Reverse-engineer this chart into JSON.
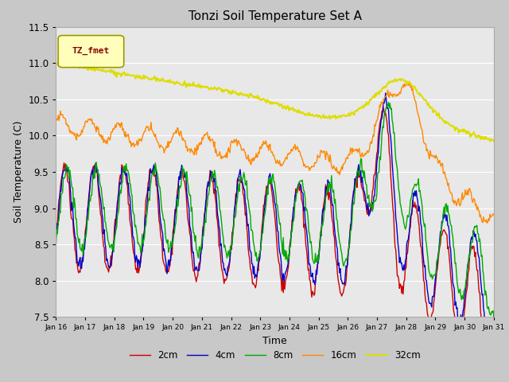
{
  "title": "Tonzi Soil Temperature Set A",
  "xlabel": "Time",
  "ylabel": "Soil Temperature (C)",
  "ylim": [
    7.5,
    11.5
  ],
  "fig_facecolor": "#c8c8c8",
  "plot_bg_color": "#e8e8e8",
  "legend_label": "TZ_fmet",
  "legend_box_facecolor": "#ffffbb",
  "legend_box_edgecolor": "#999900",
  "legend_text_color": "#880000",
  "x_tick_labels": [
    "Jan 16",
    "Jan 17",
    "Jan 18",
    "Jan 19",
    "Jan 20",
    "Jan 21",
    "Jan 22",
    "Jan 23",
    "Jan 24",
    "Jan 25",
    "Jan 26",
    "Jan 27",
    "Jan 28",
    "Jan 29",
    "Jan 30",
    "Jan 31"
  ],
  "series_labels": [
    "2cm",
    "4cm",
    "8cm",
    "16cm",
    "32cm"
  ],
  "series_colors": [
    "#cc0000",
    "#0000cc",
    "#00aa00",
    "#ff8800",
    "#dddd00"
  ],
  "linewidth": 1.0,
  "grid_color": "#ffffff",
  "n_points": 600
}
